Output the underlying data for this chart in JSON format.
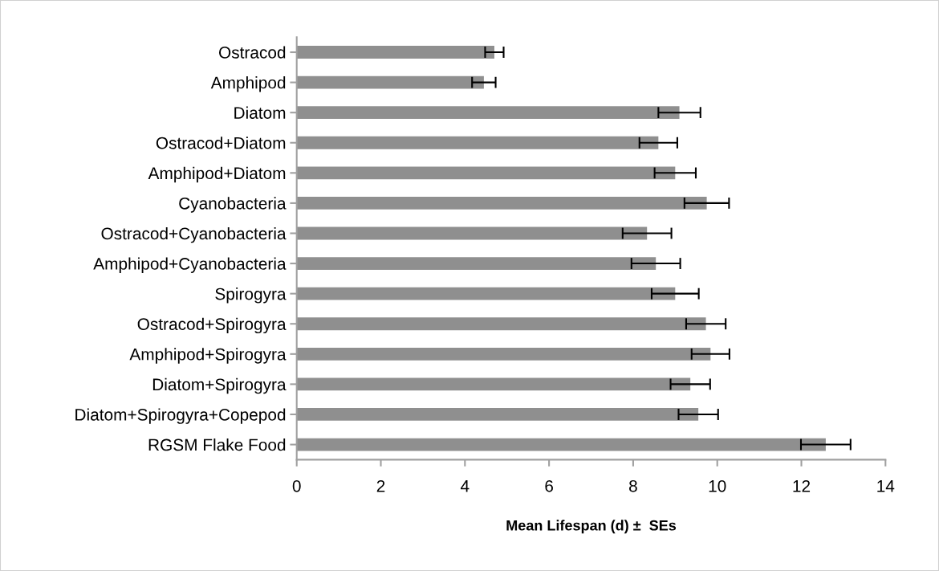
{
  "chart_data": {
    "type": "bar",
    "orientation": "horizontal",
    "xlabel": "Mean Lifespan (d) ±  SEs",
    "categories": [
      "Ostracod",
      "Amphipod",
      "Diatom",
      "Ostracod+Diatom",
      "Amphipod+Diatom",
      "Cyanobacteria",
      "Ostracod+Cyanobacteria",
      "Amphipod+Cyanobacteria",
      "Spirogyra",
      "Ostracod+Spirogyra",
      "Amphipod+Spirogyra",
      "Diatom+Spirogyra",
      "Diatom+Spirogyra+Copepod",
      "RGSM Flake Food"
    ],
    "values": [
      4.7,
      4.45,
      9.1,
      8.6,
      9.0,
      9.75,
      8.33,
      8.54,
      9.0,
      9.73,
      9.84,
      9.36,
      9.55,
      12.58
    ],
    "errors": [
      0.22,
      0.28,
      0.5,
      0.45,
      0.49,
      0.53,
      0.58,
      0.58,
      0.56,
      0.47,
      0.45,
      0.47,
      0.47,
      0.59
    ],
    "color": "#8f8f8f",
    "xlim": [
      0,
      14
    ],
    "xticks": [
      0,
      2,
      4,
      6,
      8,
      10,
      12,
      14
    ],
    "grid": false,
    "legend": false
  }
}
